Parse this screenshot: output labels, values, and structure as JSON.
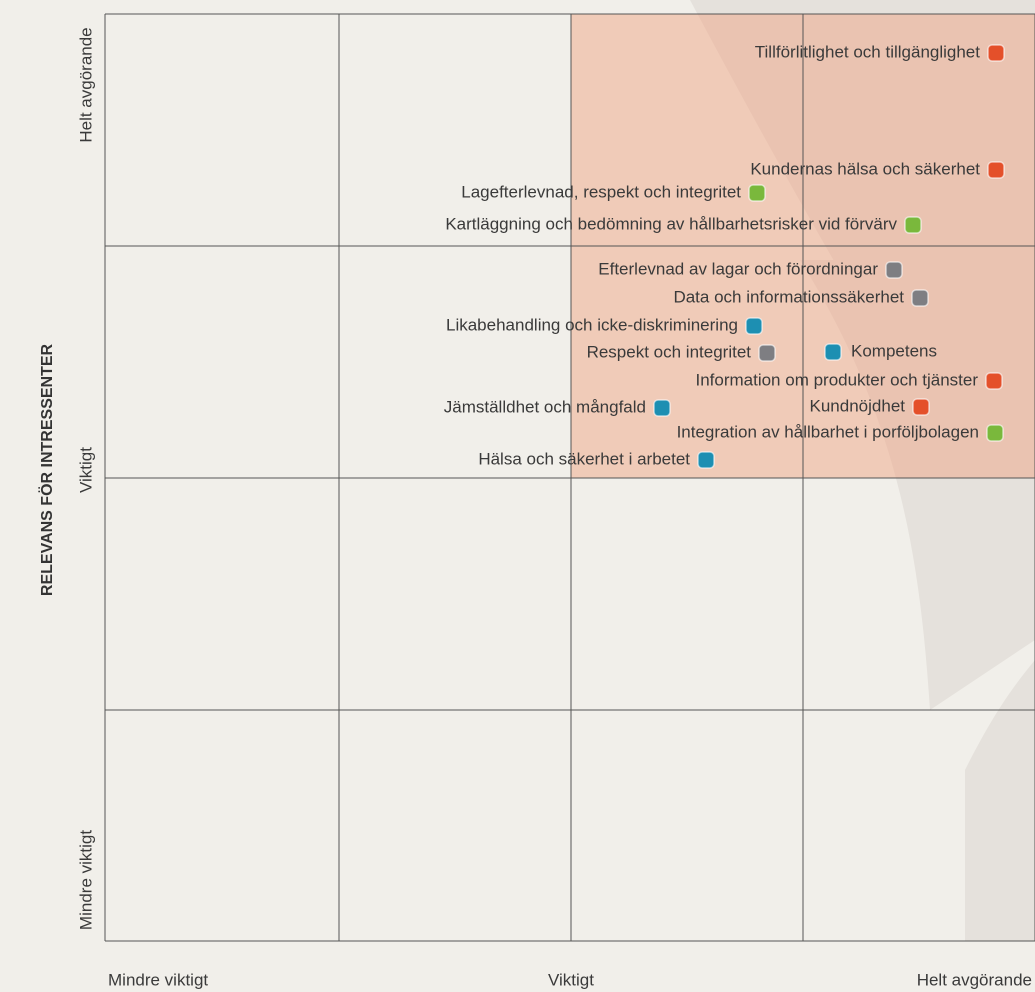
{
  "y_axis": {
    "title": "RELEVANS FÖR INTRESSENTER",
    "labels": [
      "Helt avgörande",
      "Viktigt",
      "Mindre viktigt"
    ]
  },
  "x_axis": {
    "labels": [
      "Mindre viktigt",
      "Viktigt",
      "Helt avgörande"
    ]
  },
  "items": [
    {
      "label": "Tillförlitlighet och tillgänglighet",
      "color": "#e4502a"
    },
    {
      "label": "Kundernas hälsa och säkerhet",
      "color": "#e4502a"
    },
    {
      "label": "Lagefterlevnad, respekt och integritet",
      "color": "#7ab83c"
    },
    {
      "label": "Kartläggning och bedömning av hållbarhetsrisker vid förvärv",
      "color": "#7ab83c"
    },
    {
      "label": "Efterlevnad av lagar och förordningar",
      "color": "#7e7e82"
    },
    {
      "label": "Data och informationssäkerhet",
      "color": "#7e7e82"
    },
    {
      "label": "Likabehandling och icke-diskriminering",
      "color": "#1d8fb2"
    },
    {
      "label": "Respekt och integritet",
      "color": "#7e7e82"
    },
    {
      "label": "Kompetens",
      "color": "#1d8fb2"
    },
    {
      "label": "Information om produkter och tjänster",
      "color": "#e4502a"
    },
    {
      "label": "Kundnöjdhet",
      "color": "#e4502a"
    },
    {
      "label": "Jämställdhet och mångfald",
      "color": "#1d8fb2"
    },
    {
      "label": "Integration av hållbarhet i porföljbolagen",
      "color": "#7ab83c"
    },
    {
      "label": "Hälsa och säkerhet i arbetet",
      "color": "#1d8fb2"
    }
  ]
}
